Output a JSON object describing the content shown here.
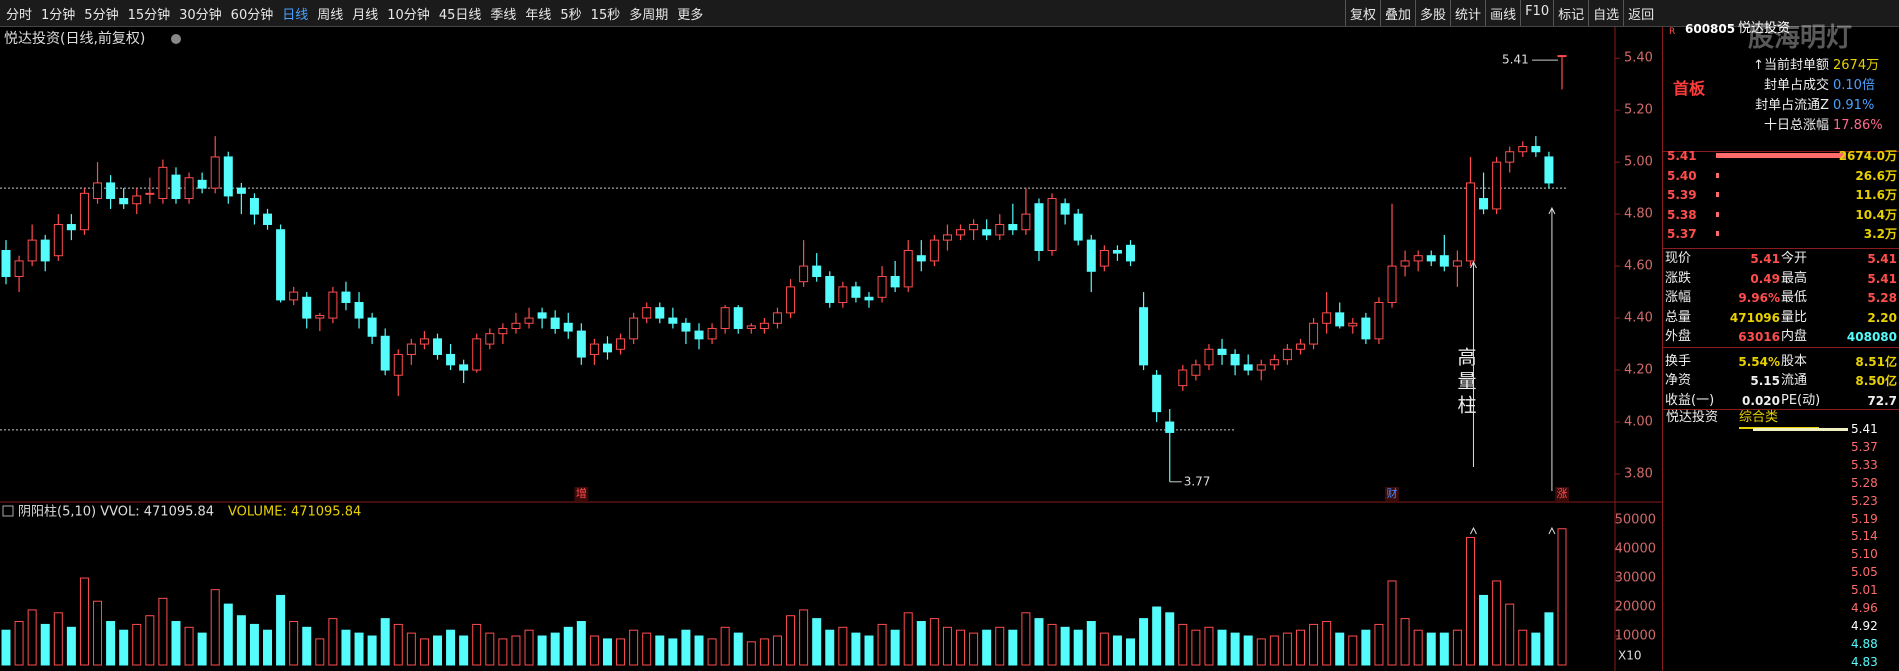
{
  "toolbar": {
    "left": [
      "分时",
      "1分钟",
      "5分钟",
      "15分钟",
      "30分钟",
      "60分钟",
      "日线",
      "周线",
      "月线",
      "10分钟",
      "45日线",
      "季线",
      "年线",
      "5秒",
      "15秒",
      "多周期",
      "更多"
    ],
    "right": [
      "复权",
      "叠加",
      "多股",
      "统计",
      "画线",
      "F10",
      "标记",
      "自选",
      "返回"
    ]
  },
  "chart_data": {
    "type": "candlestick",
    "title": "悦达投资(日线,前复权)",
    "candles": [
      [
        4.66,
        4.7,
        4.53,
        4.56
      ],
      [
        4.56,
        4.64,
        4.5,
        4.62
      ],
      [
        4.62,
        4.76,
        4.6,
        4.7
      ],
      [
        4.7,
        4.72,
        4.58,
        4.62
      ],
      [
        4.64,
        4.8,
        4.62,
        4.76
      ],
      [
        4.76,
        4.8,
        4.7,
        4.74
      ],
      [
        4.74,
        4.9,
        4.72,
        4.88
      ],
      [
        4.86,
        5.0,
        4.84,
        4.92
      ],
      [
        4.92,
        4.95,
        4.82,
        4.86
      ],
      [
        4.86,
        4.9,
        4.82,
        4.84
      ],
      [
        4.84,
        4.9,
        4.8,
        4.87
      ],
      [
        4.88,
        4.94,
        4.84,
        4.88
      ],
      [
        4.86,
        5.01,
        4.84,
        4.98
      ],
      [
        4.95,
        4.98,
        4.84,
        4.86
      ],
      [
        4.86,
        4.96,
        4.84,
        4.94
      ],
      [
        4.93,
        4.96,
        4.88,
        4.9
      ],
      [
        4.9,
        5.1,
        4.88,
        5.02
      ],
      [
        5.02,
        5.04,
        4.84,
        4.87
      ],
      [
        4.9,
        4.92,
        4.8,
        4.88
      ],
      [
        4.86,
        4.88,
        4.76,
        4.8
      ],
      [
        4.8,
        4.82,
        4.74,
        4.76
      ],
      [
        4.74,
        4.76,
        4.46,
        4.47
      ],
      [
        4.47,
        4.52,
        4.45,
        4.5
      ],
      [
        4.48,
        4.5,
        4.36,
        4.4
      ],
      [
        4.4,
        4.42,
        4.35,
        4.41
      ],
      [
        4.4,
        4.52,
        4.38,
        4.5
      ],
      [
        4.5,
        4.54,
        4.43,
        4.46
      ],
      [
        4.46,
        4.5,
        4.36,
        4.4
      ],
      [
        4.4,
        4.42,
        4.3,
        4.33
      ],
      [
        4.33,
        4.36,
        4.18,
        4.2
      ],
      [
        4.18,
        4.28,
        4.1,
        4.26
      ],
      [
        4.26,
        4.32,
        4.22,
        4.3
      ],
      [
        4.3,
        4.35,
        4.28,
        4.32
      ],
      [
        4.32,
        4.34,
        4.24,
        4.26
      ],
      [
        4.26,
        4.3,
        4.2,
        4.22
      ],
      [
        4.22,
        4.24,
        4.15,
        4.2
      ],
      [
        4.2,
        4.34,
        4.19,
        4.32
      ],
      [
        4.3,
        4.36,
        4.28,
        4.34
      ],
      [
        4.34,
        4.38,
        4.3,
        4.36
      ],
      [
        4.36,
        4.42,
        4.34,
        4.38
      ],
      [
        4.38,
        4.44,
        4.36,
        4.4
      ],
      [
        4.42,
        4.44,
        4.36,
        4.4
      ],
      [
        4.4,
        4.43,
        4.34,
        4.36
      ],
      [
        4.38,
        4.42,
        4.32,
        4.35
      ],
      [
        4.35,
        4.38,
        4.22,
        4.25
      ],
      [
        4.26,
        4.32,
        4.22,
        4.3
      ],
      [
        4.3,
        4.33,
        4.24,
        4.27
      ],
      [
        4.28,
        4.34,
        4.26,
        4.32
      ],
      [
        4.32,
        4.42,
        4.3,
        4.4
      ],
      [
        4.4,
        4.46,
        4.38,
        4.44
      ],
      [
        4.44,
        4.46,
        4.38,
        4.4
      ],
      [
        4.4,
        4.44,
        4.36,
        4.38
      ],
      [
        4.38,
        4.4,
        4.3,
        4.35
      ],
      [
        4.35,
        4.38,
        4.28,
        4.32
      ],
      [
        4.32,
        4.38,
        4.3,
        4.36
      ],
      [
        4.36,
        4.45,
        4.34,
        4.44
      ],
      [
        4.44,
        4.45,
        4.34,
        4.36
      ],
      [
        4.36,
        4.38,
        4.34,
        4.37
      ],
      [
        4.36,
        4.4,
        4.34,
        4.38
      ],
      [
        4.38,
        4.44,
        4.36,
        4.42
      ],
      [
        4.42,
        4.55,
        4.4,
        4.52
      ],
      [
        4.54,
        4.7,
        4.52,
        4.6
      ],
      [
        4.6,
        4.65,
        4.54,
        4.56
      ],
      [
        4.56,
        4.58,
        4.44,
        4.46
      ],
      [
        4.46,
        4.54,
        4.44,
        4.52
      ],
      [
        4.52,
        4.54,
        4.46,
        4.48
      ],
      [
        4.48,
        4.5,
        4.44,
        4.47
      ],
      [
        4.48,
        4.6,
        4.46,
        4.56
      ],
      [
        4.56,
        4.62,
        4.5,
        4.52
      ],
      [
        4.52,
        4.7,
        4.5,
        4.66
      ],
      [
        4.64,
        4.7,
        4.58,
        4.62
      ],
      [
        4.62,
        4.72,
        4.6,
        4.7
      ],
      [
        4.7,
        4.76,
        4.66,
        4.72
      ],
      [
        4.72,
        4.76,
        4.7,
        4.74
      ],
      [
        4.74,
        4.78,
        4.7,
        4.76
      ],
      [
        4.74,
        4.78,
        4.7,
        4.72
      ],
      [
        4.72,
        4.8,
        4.7,
        4.76
      ],
      [
        4.76,
        4.84,
        4.72,
        4.74
      ],
      [
        4.74,
        4.9,
        4.72,
        4.8
      ],
      [
        4.84,
        4.86,
        4.62,
        4.66
      ],
      [
        4.66,
        4.88,
        4.64,
        4.86
      ],
      [
        4.84,
        4.86,
        4.76,
        4.8
      ],
      [
        4.8,
        4.82,
        4.68,
        4.7
      ],
      [
        4.7,
        4.72,
        4.5,
        4.58
      ],
      [
        4.6,
        4.68,
        4.58,
        4.66
      ],
      [
        4.66,
        4.68,
        4.62,
        4.65
      ],
      [
        4.68,
        4.7,
        4.6,
        4.62
      ],
      [
        4.44,
        4.5,
        4.2,
        4.22
      ],
      [
        4.18,
        4.2,
        4.0,
        4.04
      ],
      [
        4.0,
        4.05,
        3.77,
        3.96
      ],
      [
        4.14,
        4.22,
        4.12,
        4.2
      ],
      [
        4.18,
        4.24,
        4.16,
        4.22
      ],
      [
        4.22,
        4.3,
        4.2,
        4.28
      ],
      [
        4.28,
        4.32,
        4.22,
        4.26
      ],
      [
        4.26,
        4.28,
        4.18,
        4.22
      ],
      [
        4.22,
        4.26,
        4.18,
        4.2
      ],
      [
        4.2,
        4.24,
        4.16,
        4.22
      ],
      [
        4.22,
        4.26,
        4.2,
        4.24
      ],
      [
        4.24,
        4.3,
        4.22,
        4.28
      ],
      [
        4.28,
        4.32,
        4.26,
        4.3
      ],
      [
        4.3,
        4.4,
        4.28,
        4.38
      ],
      [
        4.38,
        4.5,
        4.34,
        4.42
      ],
      [
        4.42,
        4.46,
        4.36,
        4.37
      ],
      [
        4.37,
        4.4,
        4.34,
        4.38
      ],
      [
        4.4,
        4.42,
        4.3,
        4.32
      ],
      [
        4.32,
        4.48,
        4.3,
        4.46
      ],
      [
        4.46,
        4.84,
        4.44,
        4.6
      ],
      [
        4.6,
        4.66,
        4.56,
        4.62
      ],
      [
        4.62,
        4.66,
        4.58,
        4.64
      ],
      [
        4.64,
        4.66,
        4.6,
        4.62
      ],
      [
        4.64,
        4.72,
        4.58,
        4.6
      ],
      [
        4.6,
        4.66,
        4.52,
        4.62
      ],
      [
        4.62,
        5.02,
        4.6,
        4.92
      ],
      [
        4.86,
        4.96,
        4.8,
        4.82
      ],
      [
        4.82,
        5.02,
        4.8,
        5.0
      ],
      [
        5.0,
        5.06,
        4.96,
        5.04
      ],
      [
        5.04,
        5.08,
        5.02,
        5.06
      ],
      [
        5.06,
        5.1,
        5.02,
        5.04
      ],
      [
        5.02,
        5.04,
        4.9,
        4.92
      ],
      [
        5.41,
        5.41,
        5.28,
        5.41
      ]
    ],
    "up_color": "#ff4d4d",
    "down_color": "#54fcfc",
    "ylim": [
      3.7,
      5.52
    ],
    "yticks": [
      {
        "value": 5.4,
        "label": "5.40"
      },
      {
        "value": 5.2,
        "label": "5.20"
      },
      {
        "value": 5.0,
        "label": "5.00"
      },
      {
        "value": 4.8,
        "label": "4.80"
      },
      {
        "value": 4.6,
        "label": "4.60"
      },
      {
        "value": 4.4,
        "label": "4.40"
      },
      {
        "value": 4.2,
        "label": "4.20"
      },
      {
        "value": 4.0,
        "label": "4.00"
      },
      {
        "value": 3.8,
        "label": "3.80"
      }
    ],
    "reference_lines": [
      4.9,
      3.97
    ],
    "annotations": {
      "high": "5.41",
      "low": "3.77",
      "volume_note": [
        "高",
        "量",
        "柱"
      ],
      "markers": [
        "增",
        "财",
        "涨"
      ]
    },
    "volume": {
      "header": "阴阳柱(5,10) VVOL: 471095.84",
      "header2": "VOLUME: 471095.84",
      "unit_label": "X10",
      "values": [
        12000,
        15000,
        19000,
        14000,
        18000,
        13000,
        30000,
        22000,
        15000,
        12000,
        14000,
        17000,
        23000,
        15000,
        13000,
        11000,
        26000,
        21000,
        17000,
        14000,
        12000,
        24000,
        15000,
        13000,
        9000,
        16000,
        12000,
        11000,
        10000,
        16000,
        14000,
        11000,
        9000,
        10000,
        12000,
        10000,
        14000,
        11000,
        9000,
        10000,
        12000,
        10000,
        11000,
        13000,
        15000,
        10000,
        9000,
        9000,
        12000,
        11000,
        10000,
        9000,
        12000,
        10000,
        9000,
        13000,
        11000,
        8000,
        9000,
        10000,
        17000,
        19000,
        16000,
        12000,
        13000,
        11000,
        10000,
        14000,
        12000,
        18000,
        15000,
        16000,
        13000,
        12000,
        11000,
        12000,
        13000,
        12000,
        18000,
        16000,
        14000,
        13000,
        12000,
        15000,
        11000,
        10000,
        9000,
        16000,
        20000,
        18000,
        14000,
        12000,
        13000,
        12000,
        11000,
        10000,
        9000,
        10000,
        11000,
        12000,
        14000,
        15000,
        11000,
        10000,
        12000,
        14000,
        29000,
        16000,
        12000,
        11000,
        11000,
        12000,
        44000,
        24000,
        29000,
        21000,
        12000,
        11000,
        18000,
        47000
      ],
      "ylim": [
        0,
        51400
      ],
      "yticks": [
        10000,
        20000,
        30000,
        40000,
        50000
      ]
    }
  },
  "quote_panel": {
    "flag": "R",
    "code": "600805",
    "name": "悦达投资",
    "watermark": "股海明灯",
    "badge": "首板",
    "seal": [
      [
        "↑当前封单额",
        "2674万"
      ],
      [
        "封单占成交",
        "0.10倍"
      ],
      [
        "封单占流通Z",
        "0.91%"
      ],
      [
        "十日总涨幅",
        "17.86%"
      ]
    ],
    "book": [
      [
        "5.41",
        "2674.0万"
      ],
      [
        "5.40",
        "26.6万"
      ],
      [
        "5.39",
        "11.6万"
      ],
      [
        "5.38",
        "10.4万"
      ],
      [
        "5.37",
        "3.2万"
      ]
    ],
    "rows": [
      [
        "现价",
        "5.41",
        "今开",
        "5.41"
      ],
      [
        "涨跌",
        "0.49",
        "最高",
        "5.41"
      ],
      [
        "涨幅",
        "9.96%",
        "最低",
        "5.28"
      ],
      [
        "总量",
        "471096",
        "量比",
        "2.20"
      ],
      [
        "外盘",
        "63016",
        "内盘",
        "408080"
      ],
      [
        "换手",
        "5.54%",
        "股本",
        "8.51亿"
      ],
      [
        "净资",
        "5.15",
        "流通",
        "8.50亿"
      ],
      [
        "收益(一)",
        "0.020",
        "PE(动)",
        "72.7"
      ]
    ],
    "sector": [
      "悦达投资",
      "综合类"
    ],
    "mini_scale": [
      "5.41",
      "5.37",
      "5.33",
      "5.28",
      "5.23",
      "5.19",
      "5.14",
      "5.10",
      "5.05",
      "5.01",
      "4.96",
      "4.92",
      "4.88",
      "4.83"
    ]
  }
}
